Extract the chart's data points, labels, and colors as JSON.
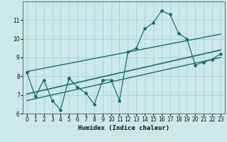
{
  "xlabel": "Humidex (Indice chaleur)",
  "bg_color": "#cce8ea",
  "grid_color": "#aacfd2",
  "line_color": "#1a6e6e",
  "xlim": [
    -0.5,
    23.5
  ],
  "ylim": [
    6,
    12
  ],
  "yticks": [
    6,
    7,
    8,
    9,
    10,
    11
  ],
  "xticks": [
    0,
    1,
    2,
    3,
    4,
    5,
    6,
    7,
    8,
    9,
    10,
    11,
    12,
    13,
    14,
    15,
    16,
    17,
    18,
    19,
    20,
    21,
    22,
    23
  ],
  "scatter_x": [
    0,
    1,
    2,
    3,
    4,
    5,
    5,
    6,
    7,
    8,
    9,
    10,
    11,
    12,
    13,
    14,
    15,
    16,
    17,
    18,
    19,
    20,
    21,
    22,
    23
  ],
  "scatter_y": [
    8.2,
    6.9,
    7.8,
    6.7,
    6.2,
    7.9,
    7.9,
    7.4,
    7.1,
    6.5,
    7.8,
    7.8,
    6.7,
    9.3,
    9.5,
    10.55,
    10.85,
    11.5,
    11.3,
    10.3,
    10.0,
    8.6,
    8.75,
    8.9,
    9.2
  ],
  "reg_line_x": [
    0,
    23
  ],
  "reg_line_y": [
    7.05,
    9.4
  ],
  "upper_line_x": [
    0,
    23
  ],
  "upper_line_y": [
    8.25,
    10.25
  ],
  "lower_line_x": [
    0,
    23
  ],
  "lower_line_y": [
    6.7,
    9.0
  ]
}
